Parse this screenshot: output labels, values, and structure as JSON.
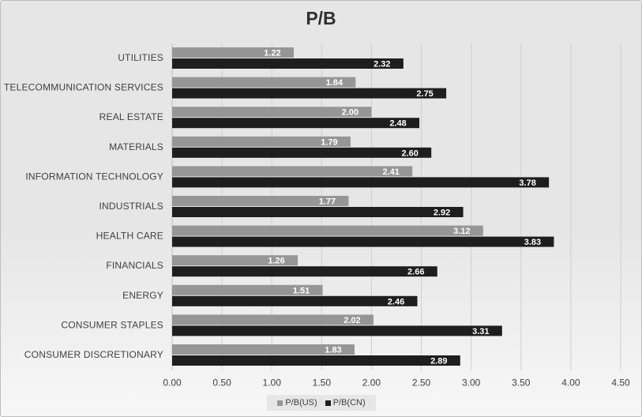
{
  "chart_data": {
    "type": "bar",
    "orientation": "horizontal",
    "title": "P/B",
    "categories": [
      "UTILITIES",
      "TELECOMMUNICATION SERVICES",
      "REAL ESTATE",
      "MATERIALS",
      "INFORMATION TECHNOLOGY",
      "INDUSTRIALS",
      "HEALTH CARE",
      "FINANCIALS",
      "ENERGY",
      "CONSUMER STAPLES",
      "CONSUMER DISCRETIONARY"
    ],
    "series": [
      {
        "name": "P/B(US)",
        "color": "#969696",
        "values": [
          1.22,
          1.84,
          2.0,
          1.79,
          2.41,
          1.77,
          3.12,
          1.26,
          1.51,
          2.02,
          1.83
        ],
        "labels": [
          "1.22",
          "1.84",
          "2.00",
          "1.79",
          "2.41",
          "1.77",
          "3.12",
          "1.26",
          "1.51",
          "2.02",
          "1.83"
        ]
      },
      {
        "name": "P/B(CN)",
        "color": "#1e1e1e",
        "values": [
          2.32,
          2.75,
          2.48,
          2.6,
          3.78,
          2.92,
          3.83,
          2.66,
          2.46,
          3.31,
          2.89
        ],
        "labels": [
          "2.32",
          "2.75",
          "2.48",
          "2.60",
          "3.78",
          "2.92",
          "3.83",
          "2.66",
          "2.46",
          "3.31",
          "2.89"
        ]
      }
    ],
    "xlim": [
      0,
      4.5
    ],
    "xticks": [
      "0.00",
      "0.50",
      "1.00",
      "1.50",
      "2.00",
      "2.50",
      "3.00",
      "3.50",
      "4.00",
      "4.50"
    ],
    "xlabel": "",
    "ylabel": "",
    "grid": true,
    "legend_position": "bottom"
  }
}
